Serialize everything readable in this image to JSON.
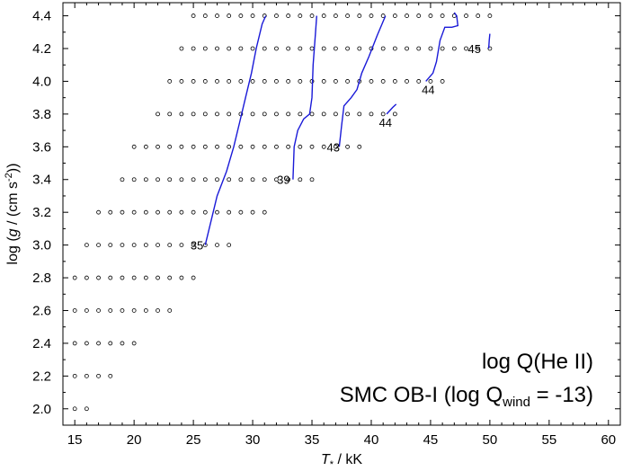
{
  "chart_data": {
    "type": "scatter",
    "title": "",
    "xlabel": {
      "symbol": "T",
      "sub": "*",
      "rest": " / kK"
    },
    "ylabel": {
      "pre": "log (",
      "g": "g",
      "mid": " / (cm s",
      "sup": "-2",
      "post": "))"
    },
    "xlim": [
      14,
      61
    ],
    "ylim": [
      1.9,
      4.48
    ],
    "x_ticks": [
      15,
      20,
      25,
      30,
      35,
      40,
      45,
      50,
      55,
      60
    ],
    "y_ticks": [
      2.0,
      2.2,
      2.4,
      2.6,
      2.8,
      3.0,
      3.2,
      3.4,
      3.6,
      3.8,
      4.0,
      4.2,
      4.4
    ],
    "grid": false,
    "annotations": {
      "line1": "log Q(He II)",
      "line2_pre": "SMC OB-I (log Q",
      "line2_sub": "wind",
      "line2_post": " = -13)"
    },
    "model_grid": [
      {
        "logg": 4.4,
        "T": [
          25,
          26,
          27,
          28,
          29,
          30,
          31,
          32,
          33,
          34,
          35,
          36,
          37,
          38,
          39,
          40,
          41,
          42,
          43,
          44,
          45,
          46,
          47,
          48,
          49,
          50
        ]
      },
      {
        "logg": 4.2,
        "T": [
          24,
          25,
          26,
          27,
          28,
          29,
          30,
          31,
          32,
          33,
          34,
          35,
          36,
          37,
          38,
          39,
          40,
          41,
          42,
          43,
          44,
          45,
          46,
          47,
          48,
          49,
          50
        ]
      },
      {
        "logg": 4.0,
        "T": [
          23,
          24,
          25,
          26,
          27,
          28,
          29,
          30,
          31,
          32,
          33,
          34,
          35,
          36,
          37,
          38,
          39,
          40,
          41,
          42,
          43,
          44,
          45,
          46
        ]
      },
      {
        "logg": 3.8,
        "T": [
          22,
          23,
          24,
          25,
          26,
          27,
          28,
          29,
          30,
          31,
          32,
          33,
          34,
          35,
          36,
          37,
          38,
          39,
          40,
          41,
          42
        ]
      },
      {
        "logg": 3.6,
        "T": [
          20,
          21,
          22,
          23,
          24,
          25,
          26,
          27,
          28,
          29,
          30,
          31,
          32,
          33,
          34,
          35,
          36,
          37,
          38,
          39
        ]
      },
      {
        "logg": 3.4,
        "T": [
          19,
          20,
          21,
          22,
          23,
          24,
          25,
          26,
          27,
          28,
          29,
          30,
          31,
          32,
          33,
          34,
          35
        ]
      },
      {
        "logg": 3.2,
        "T": [
          17,
          18,
          19,
          20,
          21,
          22,
          23,
          24,
          25,
          26,
          27,
          28,
          29,
          30,
          31
        ]
      },
      {
        "logg": 3.0,
        "T": [
          16,
          17,
          18,
          19,
          20,
          21,
          22,
          23,
          24,
          25,
          26,
          27,
          28
        ]
      },
      {
        "logg": 2.8,
        "T": [
          15,
          16,
          17,
          18,
          19,
          20,
          21,
          22,
          23,
          24,
          25
        ]
      },
      {
        "logg": 2.6,
        "T": [
          15,
          16,
          17,
          18,
          19,
          20,
          21,
          22,
          23
        ]
      },
      {
        "logg": 2.4,
        "T": [
          15,
          16,
          17,
          18,
          19,
          20
        ]
      },
      {
        "logg": 2.2,
        "T": [
          15,
          16,
          17,
          18
        ]
      },
      {
        "logg": 2.0,
        "T": [
          15,
          16
        ]
      }
    ],
    "contours": [
      {
        "label": "35",
        "label_at": [
          25.3,
          3.0
        ],
        "points": [
          [
            26.0,
            3.0
          ],
          [
            26.5,
            3.15
          ],
          [
            27.0,
            3.3
          ],
          [
            27.8,
            3.45
          ],
          [
            28.4,
            3.6
          ],
          [
            28.9,
            3.75
          ],
          [
            29.4,
            3.9
          ],
          [
            29.9,
            4.05
          ],
          [
            30.3,
            4.2
          ],
          [
            30.8,
            4.35
          ],
          [
            31.1,
            4.4
          ]
        ]
      },
      {
        "label": "39",
        "label_at": [
          32.6,
          3.4
        ],
        "points": [
          [
            33.4,
            3.4
          ],
          [
            33.5,
            3.6
          ],
          [
            33.8,
            3.7
          ],
          [
            34.3,
            3.77
          ],
          [
            34.8,
            3.8
          ],
          [
            35.0,
            3.9
          ],
          [
            35.1,
            4.1
          ],
          [
            35.3,
            4.3
          ],
          [
            35.4,
            4.4
          ]
        ]
      },
      {
        "label": "43",
        "label_at": [
          36.8,
          3.6
        ],
        "points": [
          [
            37.3,
            3.6
          ],
          [
            37.5,
            3.73
          ],
          [
            37.7,
            3.85
          ],
          [
            38.3,
            3.9
          ],
          [
            38.8,
            3.95
          ],
          [
            39.2,
            4.05
          ],
          [
            39.8,
            4.15
          ],
          [
            40.5,
            4.28
          ],
          [
            41.2,
            4.4
          ]
        ]
      },
      {
        "label": "44",
        "label_at": [
          41.2,
          3.75
        ],
        "points": [
          [
            41.3,
            3.8
          ],
          [
            41.8,
            3.84
          ],
          [
            42.1,
            3.86
          ]
        ]
      },
      {
        "label": "44",
        "label_at": [
          44.8,
          3.95
        ],
        "points": [
          [
            44.6,
            4.0
          ],
          [
            45.2,
            4.05
          ],
          [
            45.5,
            4.12
          ],
          [
            45.8,
            4.25
          ],
          [
            46.2,
            4.33
          ],
          [
            46.8,
            4.33
          ],
          [
            47.3,
            4.34
          ],
          [
            47.2,
            4.4
          ],
          [
            47.0,
            4.42
          ]
        ]
      },
      {
        "label": "45",
        "label_at": [
          48.7,
          4.2
        ],
        "points": [
          [
            49.9,
            4.2
          ],
          [
            49.95,
            4.25
          ],
          [
            50.0,
            4.29
          ]
        ]
      }
    ],
    "colors": {
      "contour": "#1a1ad8",
      "marker": "#000000",
      "axis": "#000000"
    }
  }
}
